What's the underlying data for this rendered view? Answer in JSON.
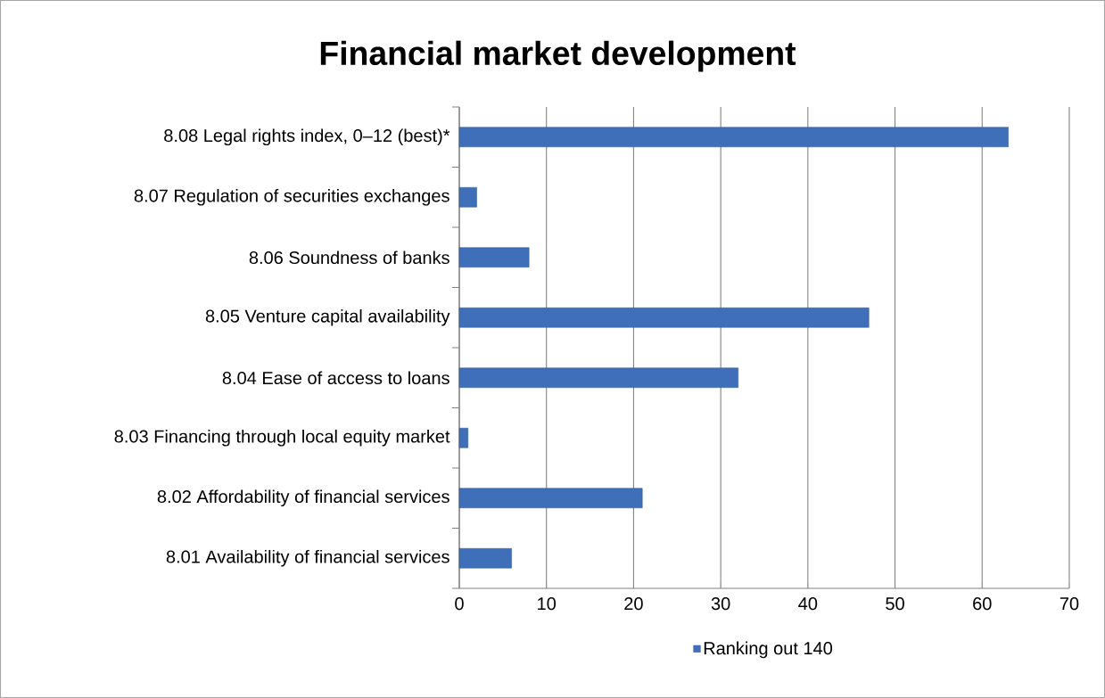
{
  "chart_data": {
    "type": "bar",
    "orientation": "horizontal",
    "title": "Financial market development",
    "categories": [
      "8.08 Legal rights index, 0–12 (best)*",
      "8.07 Regulation of securities exchanges",
      "8.06 Soundness of banks",
      "8.05 Venture capital availability",
      "8.04 Ease of access to loans",
      "8.03 Financing through local equity market",
      "8.02 Affordability of financial services",
      "8.01 Availability of financial services"
    ],
    "series": [
      {
        "name": "Ranking out 140",
        "color": "#3f6fb8",
        "values": [
          63,
          2,
          8,
          47,
          32,
          1,
          21,
          6
        ]
      }
    ],
    "xlim": [
      0,
      70
    ],
    "xticks": [
      0,
      10,
      20,
      30,
      40,
      50,
      60,
      70
    ],
    "grid": "x",
    "legend": "bottom"
  }
}
